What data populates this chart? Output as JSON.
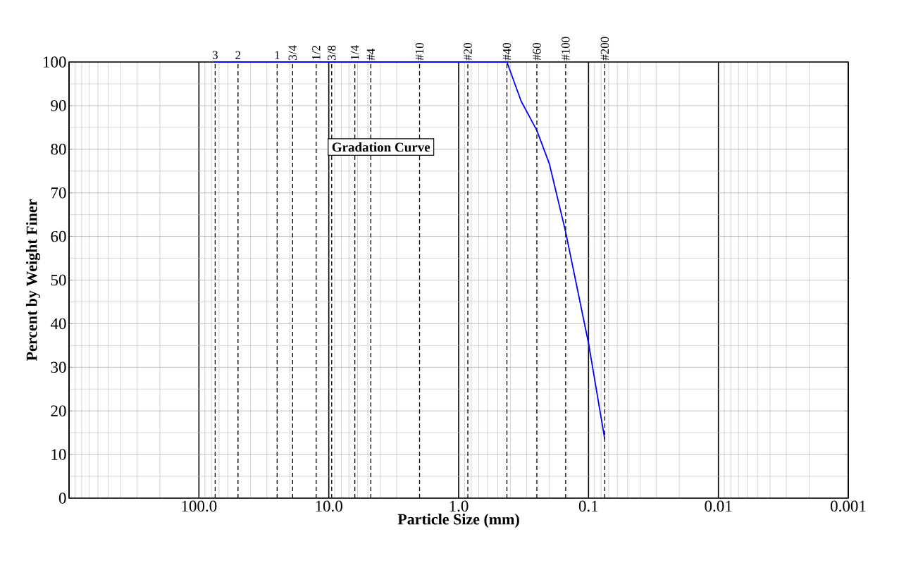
{
  "chart_data": {
    "type": "line",
    "xlabel": "Particle Size (mm)",
    "ylabel": "Percent by Weight Finer",
    "log": "x",
    "grid": true,
    "marker": "none",
    "line_style": "solid",
    "xlim": [
      1000,
      0.001
    ],
    "ylim": [
      0,
      100
    ],
    "xticks": [
      {
        "value": 1000,
        "label": null
      },
      {
        "value": 100,
        "label": "100.0"
      },
      {
        "value": 10,
        "label": "10.0"
      },
      {
        "value": 1,
        "label": "1.0"
      },
      {
        "value": 0.1,
        "label": "0.1"
      },
      {
        "value": 0.01,
        "label": "0.01"
      },
      {
        "value": 0.001,
        "label": "0.001"
      }
    ],
    "yticks": [
      0,
      10,
      20,
      30,
      40,
      50,
      60,
      70,
      80,
      90,
      100
    ],
    "series": [
      {
        "color": "#0000ff",
        "x": [
          76.2,
          0.425,
          0.33,
          0.25,
          0.2,
          0.15,
          0.1,
          0.075
        ],
        "values": [
          100,
          100,
          91,
          84.3,
          76.6,
          61,
          35.5,
          13.5
        ]
      }
    ],
    "ref_lines": [
      {
        "axis": "x",
        "value": 75,
        "line_style": "dashed"
      },
      {
        "axis": "x",
        "value": 50,
        "line_style": "dashed"
      },
      {
        "axis": "x",
        "value": 25,
        "line_style": "dashed"
      },
      {
        "axis": "x",
        "value": 19,
        "line_style": "dashed"
      },
      {
        "axis": "x",
        "value": 12.5,
        "line_style": "dashed"
      },
      {
        "axis": "x",
        "value": 9.5,
        "line_style": "dashed"
      },
      {
        "axis": "x",
        "value": 6.3,
        "line_style": "dashed"
      },
      {
        "axis": "x",
        "value": 4.75,
        "line_style": "dashed"
      },
      {
        "axis": "x",
        "value": 2,
        "line_style": "dashed"
      },
      {
        "axis": "x",
        "value": 0.85,
        "line_style": "dashed"
      },
      {
        "axis": "x",
        "value": 0.425,
        "line_style": "dashed"
      },
      {
        "axis": "x",
        "value": 0.25,
        "line_style": "dashed"
      },
      {
        "axis": "x",
        "value": 0.15,
        "line_style": "dashed"
      },
      {
        "axis": "x",
        "value": 0.075,
        "line_style": "dashed"
      }
    ],
    "annotations": [
      "Gradation Curve",
      {
        "text": "3",
        "x": 75,
        "y": 100
      },
      {
        "text": "2",
        "x": 50,
        "y": 100
      },
      {
        "text": "1",
        "x": 25,
        "y": 100
      },
      {
        "text": "3/4",
        "x": 19,
        "y": 100
      },
      {
        "text": "1/2",
        "x": 12.5,
        "y": 100
      },
      {
        "text": "3/8",
        "x": 9.5,
        "y": 100
      },
      {
        "text": "1/4",
        "x": 6.3,
        "y": 100
      },
      {
        "text": "#4",
        "x": 4.75,
        "y": 100
      },
      {
        "text": "#10",
        "x": 2,
        "y": 100
      },
      {
        "text": "#20",
        "x": 0.85,
        "y": 100
      },
      {
        "text": "#40",
        "x": 0.425,
        "y": 100
      },
      {
        "text": "#60",
        "x": 0.25,
        "y": 100
      },
      {
        "text": "#100",
        "x": 0.15,
        "y": 100
      },
      {
        "text": "#200",
        "x": 0.075,
        "y": 100
      }
    ]
  }
}
